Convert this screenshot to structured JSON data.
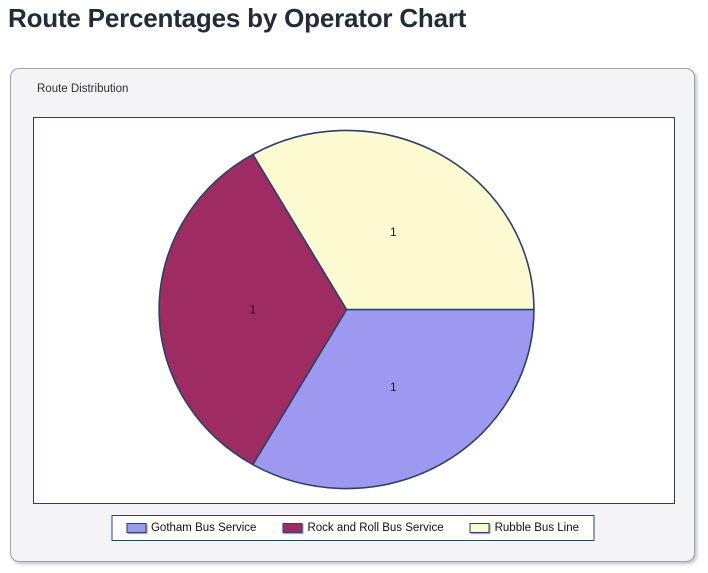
{
  "page": {
    "title": "Route Percentages by Operator Chart"
  },
  "panel": {
    "group_label": "Route Distribution"
  },
  "chart_data": {
    "type": "pie",
    "title": "Route Distribution",
    "series": [
      {
        "name": "Gotham Bus Service",
        "value": 1,
        "label": "1",
        "color": "#9D99F0"
      },
      {
        "name": "Rock and Roll Bus Service",
        "value": 1,
        "label": "1",
        "color": "#9E2C62"
      },
      {
        "name": "Rubble Bus Line",
        "value": 1,
        "label": "1",
        "color": "#FBFAD0"
      }
    ],
    "start_angle_deg": 0,
    "direction": "clockwise",
    "legend_position": "bottom",
    "outline_color": "#2B4168",
    "label_color": "#1C1C1C"
  }
}
